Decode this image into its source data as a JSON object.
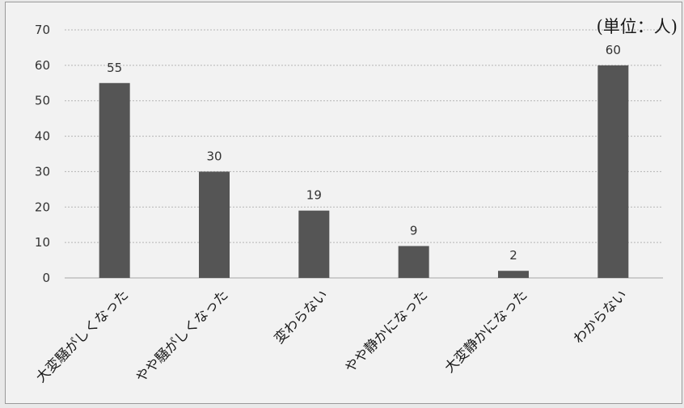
{
  "chart_data": {
    "type": "bar",
    "unit_note": "(単位：人)",
    "categories": [
      "大変騒がしくなった",
      "やや騒がしくなった",
      "変わらない",
      "やや静かになった",
      "大変静かになった",
      "わからない"
    ],
    "values": [
      55,
      30,
      19,
      9,
      2,
      60
    ],
    "yticks": [
      0,
      10,
      20,
      30,
      40,
      50,
      60,
      70
    ],
    "ylim": [
      0,
      70
    ],
    "grid": true,
    "bar_color": "#555555",
    "grid_color": "#b5b5b5"
  }
}
